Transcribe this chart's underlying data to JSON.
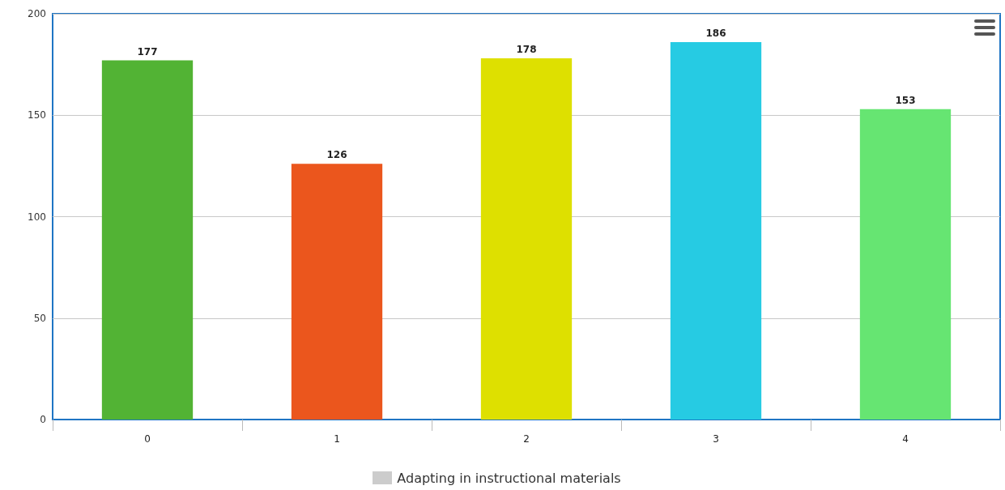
{
  "chart_data": {
    "type": "bar",
    "categories": [
      "0",
      "1",
      "2",
      "3",
      "4"
    ],
    "series": [
      {
        "name": "Adapting in instructional materials",
        "color": "#cccccc",
        "colors": [
          "#52b334",
          "#eb561d",
          "#dee000",
          "#26cbe3",
          "#66e572"
        ],
        "values": [
          177,
          126,
          178,
          186,
          153
        ]
      }
    ],
    "ylim": [
      0,
      200
    ],
    "yticks": [
      0,
      50,
      100,
      150,
      200
    ],
    "grid": "y",
    "legend": "bottom",
    "data_labels": true
  }
}
